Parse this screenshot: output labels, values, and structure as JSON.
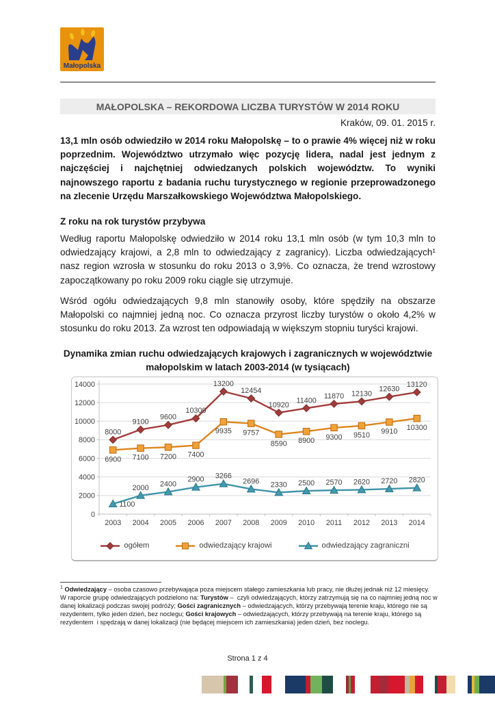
{
  "page": {
    "logo_text": "Małopolska",
    "title": "MAŁOPOLSKA – REKORDOWA LICZBA TURYSTÓW W 2014 ROKU",
    "date": "Kraków, 09. 01. 2015 r.",
    "intro": "13,1 mln osób odwiedziło w 2014 roku Małopolskę – to o prawie 4% więcej niż w roku poprzednim. Województwo utrzymało więc pozycję lidera, nadal jest jednym z najczęściej i najchętniej odwiedzanych polskich województw. To wyniki najnowszego raportu z badania ruchu turystycznego w regionie przeprowadzonego na zlecenie Urzędu Marszałkowskiego Województwa Małopolskiego.",
    "section_heading": "Z roku na rok turystów przybywa",
    "para1": "Według raportu Małopolskę odwiedziło w 2014 roku 13,1 mln osób (w tym 10,3 mln to odwiedzający krajowi, a 2,8 mln to odwiedzający z zagranicy).  Liczba odwiedzających¹ nasz region wzrosła w stosunku do roku 2013 o 3,9%. Co oznacza, że trend wzrostowy zapoczątkowany po roku 2009 roku ciągle się utrzymuje.",
    "para2": "Wśród ogółu odwiedzających 9,8 mln stanowiły osoby, które spędziły na obszarze Małopolski co najmniej jedną noc. Co oznacza przyrost liczby turystów o około 4,2% w stosunku do roku 2013. Za wzrost ten odpowiadają w większym stopniu turyści krajowi.",
    "chart_heading": "Dynamika zmian ruchu odwiedzających krajowych i zagranicznych w województwie małopolskim w latach 2003-2014 (w tysiącach)",
    "footer": "Strona 1 z 4"
  },
  "footnote_segments": [
    {
      "t": "1",
      "sup": true
    },
    {
      "t": " "
    },
    {
      "t": "Odwiedzający",
      "b": true
    },
    {
      "t": " – osoba czasowo przebywająca poza miejscem stałego zamieszkania lub pracy, nie dłużej jednak niż 12 miesięcy.\nW raporcie grupę odwiedzających podzielono na: "
    },
    {
      "t": "Turystów",
      "b": true
    },
    {
      "t": " –  czyli odwiedzających, którzy zatrzymują się na co najmniej jedną noc w danej lokalizacji podczas swojej podróży; "
    },
    {
      "t": "Gości zagranicznych",
      "b": true
    },
    {
      "t": " – odwiedzających, którzy przebywają terenie kraju, którego nie są rezydentem, tylko jeden dzień, bez noclegu; "
    },
    {
      "t": "Gości krajowych",
      "b": true
    },
    {
      "t": " – odwiedzających, którzy przebywają na terenie kraju, którego są rezydentem  i spędzają w danej lokalizacji (nie będącej miejscem ich zamieszkania) jeden dzień, bez noclegu."
    }
  ],
  "chart_data": {
    "type": "line",
    "title": "Dynamika zmian ruchu odwiedzających krajowych i zagranicznych w województwie małopolskim w latach 2003-2014 (w tysiącach)",
    "xlabel": "",
    "ylabel": "",
    "x": [
      2003,
      2004,
      2005,
      2006,
      2007,
      2008,
      2009,
      2010,
      2011,
      2012,
      2013,
      2014
    ],
    "ylim": [
      0,
      14000
    ],
    "ytick_step": 2000,
    "grid": true,
    "legend_position": "bottom",
    "series": [
      {
        "name": "ogółem",
        "marker": "diamond",
        "color": "#a23c3c",
        "edge": "#823030",
        "labels": "above",
        "values": [
          8000,
          9100,
          9600,
          10300,
          13200,
          12454,
          10920,
          11400,
          11870,
          12130,
          12630,
          13120
        ]
      },
      {
        "name": "odwiedzający krajowi",
        "marker": "square",
        "color": "#de851f",
        "fill": "#f0a238",
        "edge": "#c26f18",
        "labels": "below",
        "values": [
          6900,
          7100,
          7200,
          7400,
          9935,
          9757,
          8590,
          8900,
          9300,
          9510,
          9910,
          10300
        ]
      },
      {
        "name": "odwiedzający zagraniczni",
        "marker": "triangle",
        "color": "#3e93a9",
        "fill": "#4399af",
        "edge": "#2e7a8d",
        "labels": "above",
        "first_label_right": true,
        "values": [
          1100,
          2000,
          2400,
          2900,
          3266,
          2696,
          2330,
          2500,
          2570,
          2620,
          2720,
          2820
        ]
      }
    ]
  },
  "logo_colors": {
    "background": "#e8920e",
    "crown": "#2b3e8c",
    "flame": "#f6c01a",
    "text": "#23367d"
  },
  "strip_segments": [
    {
      "c": "#d6c6ac",
      "w": 32
    },
    {
      "c": "#74a844",
      "w": 4
    },
    {
      "c": "#a23240",
      "w": 17
    },
    {
      "c": null,
      "w": 17
    },
    {
      "c": "#2e5d51",
      "w": 5
    },
    {
      "c": null,
      "w": 13
    },
    {
      "c": "#d6182e",
      "w": 14
    },
    {
      "c": null,
      "w": 20
    },
    {
      "c": "#1b3a66",
      "w": 30
    },
    {
      "c": "#c41e32",
      "w": 7
    },
    {
      "c": "#72b25c",
      "w": 17
    },
    {
      "c": "#1f4d44",
      "w": 16
    },
    {
      "c": null,
      "w": 19
    },
    {
      "c": "#9e2b35",
      "w": 4
    },
    {
      "c": "#5e9e4c",
      "w": 3
    },
    {
      "c": "#c41e32",
      "w": 6
    },
    {
      "c": null,
      "w": 23
    },
    {
      "c": "#c41e32",
      "w": 12
    },
    {
      "c": "#a52b3a",
      "w": 14
    },
    {
      "c": "#d6182e",
      "w": 24
    },
    {
      "c": "#c8b79b",
      "w": 7
    },
    {
      "c": "#e8a33d",
      "w": 8
    },
    {
      "c": "#d6182e",
      "w": 12
    },
    {
      "c": null,
      "w": 17
    },
    {
      "c": "#1f4d44",
      "w": 4
    },
    {
      "c": "#c41e32",
      "w": 13
    },
    {
      "c": "#f2ddb0",
      "w": 13
    },
    {
      "c": null,
      "w": 18
    },
    {
      "c": "#1b3a66",
      "w": 6
    },
    {
      "c": "#e8b73d",
      "w": 4
    },
    {
      "c": "#6fae4e",
      "w": 7
    },
    {
      "c": "#1b3a66",
      "w": 28
    }
  ]
}
